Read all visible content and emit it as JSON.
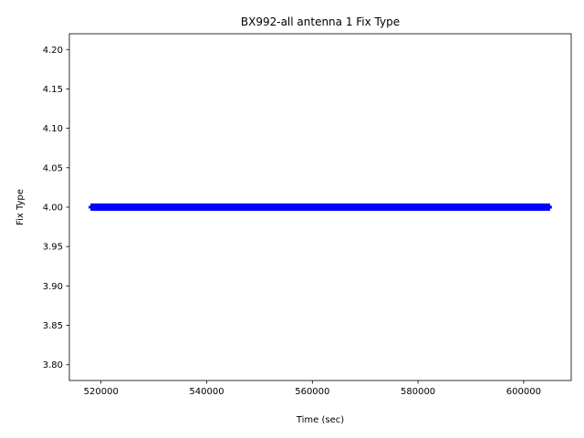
{
  "chart_data": {
    "type": "line",
    "title": "BX992-all antenna 1 Fix Type",
    "xlabel": "Time (sec)",
    "ylabel": "Fix Type",
    "xlim": [
      514000,
      609000
    ],
    "ylim": [
      3.78,
      4.22
    ],
    "xticks": [
      520000,
      540000,
      560000,
      580000,
      600000
    ],
    "xtick_labels": [
      "520000",
      "540000",
      "560000",
      "580000",
      "600000"
    ],
    "yticks": [
      3.8,
      3.85,
      3.9,
      3.95,
      4.0,
      4.05,
      4.1,
      4.15,
      4.2
    ],
    "ytick_labels": [
      "3.80",
      "3.85",
      "3.90",
      "3.95",
      "4.00",
      "4.05",
      "4.10",
      "4.15",
      "4.20"
    ],
    "grid": false,
    "series": [
      {
        "color": "#0000ff",
        "x": [
          518000,
          605000
        ],
        "y": [
          4.0,
          4.0
        ]
      }
    ]
  }
}
